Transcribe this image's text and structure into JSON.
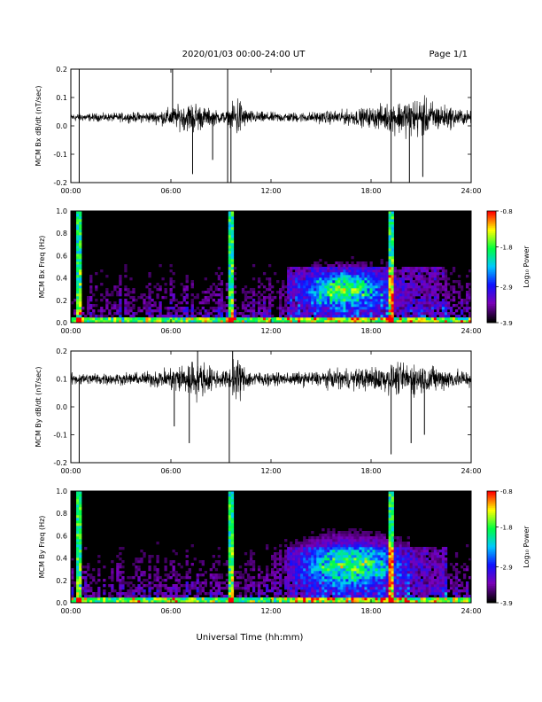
{
  "header": {
    "title": "2020/01/03  00:00-24:00 UT",
    "page": "Page 1/1"
  },
  "xaxis_title": "Universal Time (hh:mm)",
  "chart_data": [
    {
      "type": "line",
      "ylabel": "MCM Bx dB/dt (nT/sec)",
      "xlim": [
        0,
        24
      ],
      "ylim": [
        -0.2,
        0.2
      ],
      "xticks": [
        "00:00",
        "06:00",
        "12:00",
        "18:00",
        "24:00"
      ],
      "yticks": [
        "-0.2",
        "-0.1",
        "0.0",
        "0.1",
        "0.2"
      ],
      "baseline": 0.03,
      "noise_envelope": {
        "hours": [
          0,
          2,
          4,
          5,
          6,
          7,
          7.5,
          8,
          9,
          9.5,
          10,
          10.5,
          11,
          12,
          14,
          15,
          16,
          17,
          18,
          19,
          20,
          21,
          22,
          23,
          24
        ],
        "amplitude": [
          0.02,
          0.02,
          0.025,
          0.03,
          0.05,
          0.07,
          0.08,
          0.05,
          0.03,
          0.035,
          0.12,
          0.04,
          0.03,
          0.025,
          0.025,
          0.03,
          0.035,
          0.04,
          0.05,
          0.07,
          0.09,
          0.1,
          0.07,
          0.05,
          0.03
        ]
      },
      "spikes": [
        [
          0.5,
          0.2
        ],
        [
          0.5,
          -0.2
        ],
        [
          6.1,
          0.2
        ],
        [
          7.3,
          -0.17
        ],
        [
          8.5,
          -0.12
        ],
        [
          9.4,
          0.2
        ],
        [
          9.4,
          -0.2
        ],
        [
          9.6,
          -0.2
        ],
        [
          19.2,
          0.2
        ],
        [
          19.2,
          -0.2
        ],
        [
          20.3,
          -0.2
        ],
        [
          21.1,
          -0.18
        ]
      ]
    },
    {
      "type": "heatmap",
      "ylabel": "MCM Bx Freq (Hz)",
      "xlim": [
        0,
        24
      ],
      "ylim": [
        0.0,
        1.0
      ],
      "xticks": [
        "00:00",
        "06:00",
        "12:00",
        "18:00",
        "24:00"
      ],
      "yticks": [
        "0.0",
        "0.2",
        "0.4",
        "0.6",
        "0.8",
        "1.0"
      ],
      "colorbar": {
        "label": "Log₁₀ Power",
        "ticks": [
          "-0.8",
          "-1.8",
          "-2.9",
          "-3.9"
        ],
        "range": [
          -3.9,
          -0.8
        ]
      },
      "colormap": [
        "#000000",
        "#7a00b8",
        "#1010ff",
        "#00c8ff",
        "#00ff40",
        "#ffff00",
        "#ff0000"
      ],
      "hot_blob": {
        "center_hour": 16.5,
        "center_freq": 0.3,
        "width_hours": 2.4,
        "height_freq": 0.16
      },
      "vertical_lines": [
        0.5,
        9.6,
        19.2
      ]
    },
    {
      "type": "line",
      "ylabel": "MCM By dB/dt (nT/sec)",
      "xlim": [
        0,
        24
      ],
      "ylim": [
        -0.2,
        0.2
      ],
      "xticks": [
        "00:00",
        "06:00",
        "12:00",
        "18:00",
        "24:00"
      ],
      "yticks": [
        "-0.2",
        "-0.1",
        "0.0",
        "0.1",
        "0.2"
      ],
      "baseline": 0.1,
      "noise_envelope": {
        "hours": [
          0,
          2,
          4,
          5,
          6,
          7,
          7.5,
          8,
          9,
          9.5,
          10,
          10.5,
          11,
          12,
          14,
          15,
          16,
          17,
          18,
          19,
          20,
          21,
          22,
          23,
          24
        ],
        "amplitude": [
          0.03,
          0.03,
          0.03,
          0.04,
          0.06,
          0.09,
          0.1,
          0.08,
          0.04,
          0.05,
          0.12,
          0.05,
          0.04,
          0.03,
          0.035,
          0.04,
          0.05,
          0.05,
          0.06,
          0.07,
          0.08,
          0.08,
          0.06,
          0.05,
          0.04
        ]
      },
      "spikes": [
        [
          0.5,
          -0.2
        ],
        [
          6.2,
          -0.07
        ],
        [
          7.1,
          -0.13
        ],
        [
          7.6,
          0.2
        ],
        [
          9.5,
          -0.2
        ],
        [
          9.7,
          0.2
        ],
        [
          19.2,
          -0.17
        ],
        [
          20.4,
          -0.13
        ],
        [
          21.2,
          -0.1
        ]
      ]
    },
    {
      "type": "heatmap",
      "ylabel": "MCM By Freq (Hz)",
      "xlim": [
        0,
        24
      ],
      "ylim": [
        0.0,
        1.0
      ],
      "xticks": [
        "00:00",
        "06:00",
        "12:00",
        "18:00",
        "24:00"
      ],
      "yticks": [
        "0.0",
        "0.2",
        "0.4",
        "0.6",
        "0.8",
        "1.0"
      ],
      "colorbar": {
        "label": "Log₁₀ Power",
        "ticks": [
          "-0.8",
          "-1.8",
          "-2.9",
          "-3.9"
        ],
        "range": [
          -3.9,
          -0.8
        ]
      },
      "colormap": [
        "#000000",
        "#7a00b8",
        "#1010ff",
        "#00c8ff",
        "#00ff40",
        "#ffff00",
        "#ff0000"
      ],
      "hot_blob": {
        "center_hour": 16.8,
        "center_freq": 0.35,
        "width_hours": 2.8,
        "height_freq": 0.2
      },
      "vertical_lines": [
        0.5,
        9.6,
        19.2
      ]
    }
  ]
}
